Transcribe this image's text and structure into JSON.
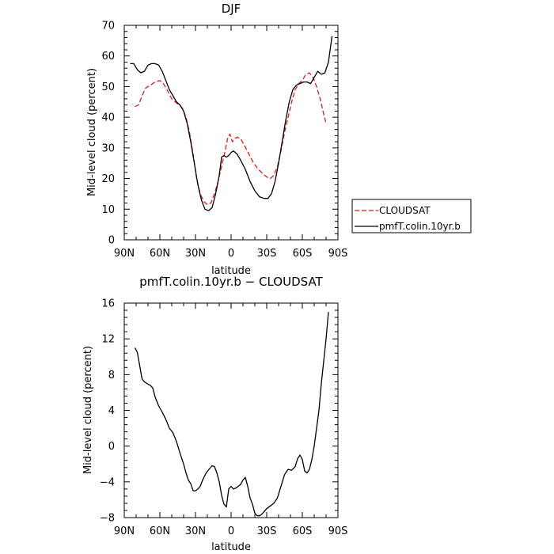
{
  "chart_data": [
    {
      "type": "line",
      "title": "DJF",
      "xlabel": "latitude",
      "ylabel": "Mid-level cloud (percent)",
      "x_ticks": [
        {
          "value": 90,
          "label": "90N"
        },
        {
          "value": 60,
          "label": "60N"
        },
        {
          "value": 30,
          "label": "30N"
        },
        {
          "value": 0,
          "label": "0"
        },
        {
          "value": -30,
          "label": "30S"
        },
        {
          "value": -60,
          "label": "60S"
        },
        {
          "value": -90,
          "label": "90S"
        }
      ],
      "xlim": [
        90,
        -90
      ],
      "ylim": [
        0,
        70
      ],
      "y_ticks": [
        0,
        10,
        20,
        30,
        40,
        50,
        60,
        70
      ],
      "legend_position": "right",
      "series": [
        {
          "name": "CLOUDSAT",
          "color": "#e31a1c",
          "dash": "dashed",
          "points": [
            [
              81,
              43.5
            ],
            [
              78,
              44
            ],
            [
              75,
              47
            ],
            [
              72,
              49.5
            ],
            [
              68,
              50.5
            ],
            [
              64,
              51.5
            ],
            [
              60,
              52
            ],
            [
              57,
              51
            ],
            [
              54,
              49
            ],
            [
              50,
              46
            ],
            [
              47,
              45
            ],
            [
              44,
              44
            ],
            [
              41,
              43
            ],
            [
              38,
              40
            ],
            [
              35,
              35
            ],
            [
              32,
              28
            ],
            [
              29,
              20
            ],
            [
              26,
              15
            ],
            [
              23,
              12.5
            ],
            [
              20,
              11.5
            ],
            [
              17,
              12
            ],
            [
              14,
              15
            ],
            [
              11,
              19
            ],
            [
              8,
              24
            ],
            [
              5,
              29
            ],
            [
              3,
              33
            ],
            [
              1,
              34.5
            ],
            [
              -1,
              32
            ],
            [
              -3,
              33
            ],
            [
              -5,
              33.5
            ],
            [
              -8,
              33
            ],
            [
              -11,
              31
            ],
            [
              -15,
              28
            ],
            [
              -19,
              25
            ],
            [
              -23,
              23
            ],
            [
              -27,
              21.5
            ],
            [
              -30,
              20.5
            ],
            [
              -33,
              20
            ],
            [
              -36,
              21
            ],
            [
              -39,
              24
            ],
            [
              -42,
              29
            ],
            [
              -45,
              35
            ],
            [
              -48,
              40
            ],
            [
              -51,
              45
            ],
            [
              -54,
              49
            ],
            [
              -57,
              51
            ],
            [
              -60,
              52
            ],
            [
              -63,
              54
            ],
            [
              -66,
              54.5
            ],
            [
              -69,
              53
            ],
            [
              -72,
              50
            ],
            [
              -75,
              46
            ],
            [
              -78,
              41
            ],
            [
              -80,
              38
            ]
          ]
        },
        {
          "name": "pmfT.colin.10yr.b",
          "color": "#000000",
          "dash": "solid",
          "points": [
            [
              85,
              57.5
            ],
            [
              82,
              57.5
            ],
            [
              79,
              55.5
            ],
            [
              76,
              54.5
            ],
            [
              73,
              55
            ],
            [
              70,
              57
            ],
            [
              67,
              57.5
            ],
            [
              64,
              57.5
            ],
            [
              61,
              57
            ],
            [
              58,
              55
            ],
            [
              55,
              52
            ],
            [
              52,
              49
            ],
            [
              49,
              47
            ],
            [
              46,
              45
            ],
            [
              43,
              44
            ],
            [
              40,
              42
            ],
            [
              37,
              38
            ],
            [
              34,
              32
            ],
            [
              31,
              25
            ],
            [
              28,
              18
            ],
            [
              25,
              13
            ],
            [
              22,
              10
            ],
            [
              19,
              9.5
            ],
            [
              16,
              10.5
            ],
            [
              13,
              15
            ],
            [
              10,
              21
            ],
            [
              8,
              27
            ],
            [
              6,
              27.5
            ],
            [
              4,
              27
            ],
            [
              2,
              27.5
            ],
            [
              0,
              28.5
            ],
            [
              -2,
              29
            ],
            [
              -5,
              28
            ],
            [
              -8,
              26
            ],
            [
              -12,
              23
            ],
            [
              -16,
              19
            ],
            [
              -20,
              16
            ],
            [
              -24,
              14
            ],
            [
              -28,
              13.5
            ],
            [
              -31,
              13.5
            ],
            [
              -34,
              15
            ],
            [
              -37,
              19
            ],
            [
              -40,
              25
            ],
            [
              -43,
              32
            ],
            [
              -46,
              39
            ],
            [
              -49,
              45
            ],
            [
              -52,
              49
            ],
            [
              -55,
              50.5
            ],
            [
              -58,
              51
            ],
            [
              -61,
              51.5
            ],
            [
              -64,
              51.5
            ],
            [
              -67,
              51
            ],
            [
              -70,
              53
            ],
            [
              -73,
              55
            ],
            [
              -76,
              54
            ],
            [
              -79,
              54.5
            ],
            [
              -82,
              58
            ],
            [
              -85,
              66.5
            ]
          ]
        }
      ]
    },
    {
      "type": "line",
      "title": "pmfT.colin.10yr.b − CLOUDSAT",
      "xlabel": "latitude",
      "ylabel": "Mid-level cloud (percent)",
      "x_ticks": [
        {
          "value": 90,
          "label": "90N"
        },
        {
          "value": 60,
          "label": "60N"
        },
        {
          "value": 30,
          "label": "30N"
        },
        {
          "value": 0,
          "label": "0"
        },
        {
          "value": -30,
          "label": "30S"
        },
        {
          "value": -60,
          "label": "60S"
        },
        {
          "value": -90,
          "label": "90S"
        }
      ],
      "xlim": [
        90,
        -90
      ],
      "ylim": [
        -8,
        16
      ],
      "y_ticks": [
        -8,
        -4,
        0,
        4,
        8,
        12,
        16
      ],
      "series": [
        {
          "color": "#000000",
          "dash": "solid",
          "points": [
            [
              81,
              11
            ],
            [
              79,
              10.5
            ],
            [
              77,
              9
            ],
            [
              75,
              7.5
            ],
            [
              73,
              7.2
            ],
            [
              71,
              7
            ],
            [
              68,
              6.8
            ],
            [
              66,
              6.5
            ],
            [
              64,
              5.5
            ],
            [
              61,
              4.5
            ],
            [
              58,
              3.8
            ],
            [
              55,
              3
            ],
            [
              52,
              2
            ],
            [
              49,
              1.5
            ],
            [
              46,
              0.5
            ],
            [
              43,
              -0.8
            ],
            [
              40,
              -2
            ],
            [
              38,
              -3
            ],
            [
              36,
              -3.8
            ],
            [
              34,
              -4.2
            ],
            [
              32,
              -5
            ],
            [
              30,
              -5
            ],
            [
              28,
              -4.8
            ],
            [
              26,
              -4.5
            ],
            [
              24,
              -3.8
            ],
            [
              21,
              -3
            ],
            [
              18,
              -2.5
            ],
            [
              16,
              -2.2
            ],
            [
              14,
              -2.3
            ],
            [
              12,
              -3
            ],
            [
              10,
              -4
            ],
            [
              8,
              -5.5
            ],
            [
              6,
              -6.5
            ],
            [
              4,
              -6.8
            ],
            [
              2,
              -4.8
            ],
            [
              0,
              -4.5
            ],
            [
              -2,
              -4.8
            ],
            [
              -4,
              -4.7
            ],
            [
              -6,
              -4.5
            ],
            [
              -8,
              -4.3
            ],
            [
              -10,
              -3.8
            ],
            [
              -12,
              -3.5
            ],
            [
              -14,
              -4.5
            ],
            [
              -16,
              -5.8
            ],
            [
              -18,
              -6.5
            ],
            [
              -20,
              -7.5
            ],
            [
              -22,
              -7.8
            ],
            [
              -24,
              -7.8
            ],
            [
              -26,
              -7.6
            ],
            [
              -28,
              -7.3
            ],
            [
              -30,
              -7
            ],
            [
              -33,
              -6.7
            ],
            [
              -36,
              -6.4
            ],
            [
              -39,
              -5.8
            ],
            [
              -42,
              -4.5
            ],
            [
              -45,
              -3.2
            ],
            [
              -48,
              -2.6
            ],
            [
              -51,
              -2.7
            ],
            [
              -54,
              -2.3
            ],
            [
              -56,
              -1.4
            ],
            [
              -58,
              -1
            ],
            [
              -60,
              -1.5
            ],
            [
              -62,
              -2.8
            ],
            [
              -64,
              -3
            ],
            [
              -66,
              -2.6
            ],
            [
              -68,
              -1.5
            ],
            [
              -70,
              0
            ],
            [
              -72,
              2
            ],
            [
              -74,
              4
            ],
            [
              -76,
              7
            ],
            [
              -78,
              9.5
            ],
            [
              -80,
              12
            ],
            [
              -82,
              15
            ]
          ]
        }
      ]
    }
  ]
}
